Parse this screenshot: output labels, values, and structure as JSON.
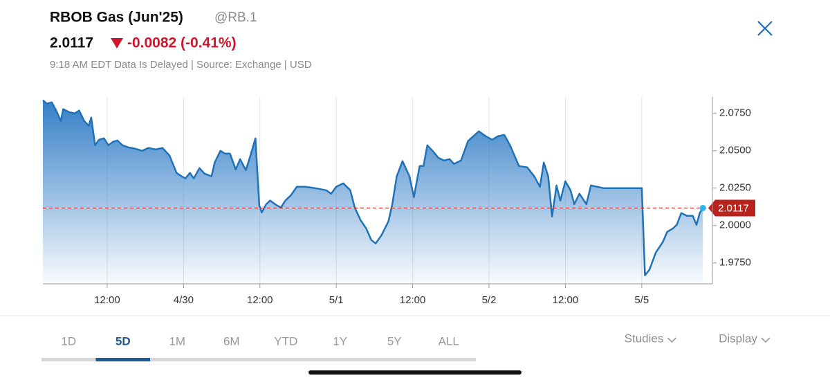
{
  "header": {
    "title": "RBOB Gas (Jun'25)",
    "symbol": "@RB.1",
    "price": "2.0117",
    "change": "-0.0082 (-0.41%)",
    "status": "9:18 AM EDT Data Is Delayed | Source: Exchange | USD"
  },
  "chart_data": {
    "type": "area",
    "color": "#1f72b8",
    "x": [
      1.9,
      2.5,
      3.3,
      4.0,
      4.7,
      5.1,
      6.0,
      6.9,
      7.6,
      8.4,
      9.1,
      9.5,
      10.1,
      10.7,
      11.5,
      12.2,
      12.9,
      13.6,
      14.4,
      15.3,
      16.4,
      17.5,
      18.5,
      19.6,
      20.7,
      21.8,
      22.9,
      23.7,
      24.3,
      25.0,
      25.6,
      26.5,
      27.3,
      28.4,
      28.9,
      29.8,
      30.5,
      31.3,
      32.2,
      32.9,
      33.8,
      34.6,
      35.3,
      35.9,
      36.3,
      37.0,
      37.6,
      38.5,
      39.3,
      40.0,
      40.9,
      41.8,
      43.1,
      44.7,
      46.4,
      47.2,
      48.0,
      49.1,
      50.2,
      50.9,
      51.8,
      52.7,
      53.5,
      54.2,
      55.1,
      56.2,
      56.8,
      57.5,
      58.4,
      59.5,
      60.2,
      61.1,
      61.7,
      62.3,
      63.3,
      64.0,
      64.9,
      65.8,
      66.5,
      67.6,
      68.7,
      70.4,
      71.5,
      72.5,
      73.4,
      74.4,
      75.3,
      76.0,
      76.7,
      78.0,
      79.1,
      80.0,
      80.6,
      81.3,
      81.9,
      82.6,
      83.2,
      84.0,
      84.8,
      85.4,
      86.2,
      87.3,
      88.0,
      90.0,
      93.3,
      96.0,
      96.5,
      97.2,
      98.2,
      99.3,
      100.0,
      100.9,
      101.5,
      102.2,
      103.1,
      104.0,
      104.6,
      105.1,
      105.6
    ],
    "values": [
      2.0838,
      2.0815,
      2.0824,
      2.0769,
      2.0699,
      2.0778,
      2.0759,
      2.075,
      2.0769,
      2.0699,
      2.0667,
      2.0722,
      2.0537,
      2.0574,
      2.0583,
      2.0537,
      2.056,
      2.0569,
      2.0537,
      2.0523,
      2.0514,
      2.05,
      2.0519,
      2.0509,
      2.0519,
      2.0468,
      2.0352,
      2.0329,
      2.0315,
      2.0352,
      2.0315,
      2.0384,
      2.0347,
      2.0329,
      2.0421,
      2.05,
      2.0481,
      2.0481,
      2.0375,
      2.0444,
      2.037,
      2.0481,
      2.0583,
      2.0134,
      2.0088,
      2.0143,
      2.0167,
      2.0139,
      2.012,
      2.0167,
      2.0204,
      2.0259,
      2.0259,
      2.025,
      2.0236,
      2.0213,
      2.0259,
      2.0282,
      2.0236,
      2.012,
      2.0037,
      1.9981,
      1.9903,
      1.988,
      1.9935,
      2.0028,
      2.0143,
      2.0329,
      2.0431,
      2.0329,
      2.019,
      2.0398,
      2.0398,
      2.0537,
      2.0491,
      2.0454,
      2.0435,
      2.0444,
      2.0412,
      2.0435,
      2.0565,
      2.063,
      2.0597,
      2.0574,
      2.0597,
      2.0606,
      2.0537,
      2.0468,
      2.0398,
      2.0389,
      2.0329,
      2.0259,
      2.0421,
      2.0329,
      2.006,
      2.0268,
      2.0167,
      2.0296,
      2.0236,
      2.0143,
      2.0213,
      2.0143,
      2.0268,
      2.025,
      2.025,
      2.025,
      1.9667,
      1.9704,
      1.9819,
      1.9889,
      1.9958,
      1.9981,
      2.0005,
      2.0083,
      2.0065,
      2.0065,
      2.0005,
      2.0083,
      2.0117
    ],
    "last_price": {
      "value": 2.0117,
      "label": "2.0117"
    },
    "xlim": [
      1.9,
      107.1
    ],
    "ylim": [
      1.961,
      2.086
    ],
    "xticks": [
      {
        "value": 12,
        "label": "12:00"
      },
      {
        "value": 24,
        "label": "4/30"
      },
      {
        "value": 36,
        "label": "12:00"
      },
      {
        "value": 48,
        "label": "5/1"
      },
      {
        "value": 60,
        "label": "12:00"
      },
      {
        "value": 72,
        "label": "5/2"
      },
      {
        "value": 84,
        "label": "12:00"
      },
      {
        "value": 96,
        "label": "5/5"
      }
    ],
    "yticks": [
      {
        "value": 1.975,
        "label": "1.9750"
      },
      {
        "value": 2.0,
        "label": "2.0000"
      },
      {
        "value": 2.025,
        "label": "2.0250"
      },
      {
        "value": 2.05,
        "label": "2.0500"
      },
      {
        "value": 2.075,
        "label": "2.0750"
      }
    ],
    "grid": true
  },
  "tabs": {
    "items": [
      "1D",
      "5D",
      "1M",
      "6M",
      "YTD",
      "1Y",
      "5Y",
      "ALL"
    ],
    "active": 1
  },
  "buttons": [
    "Studies",
    "Display"
  ]
}
